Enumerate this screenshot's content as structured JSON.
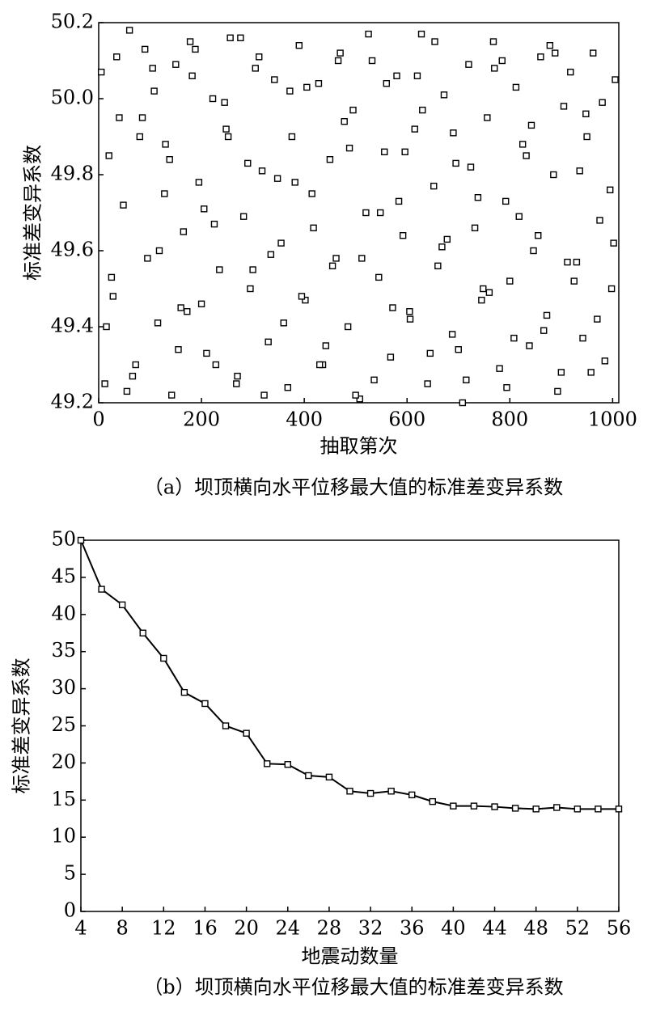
{
  "chart_data": [
    {
      "type": "scatter",
      "x_label": "抽取第次",
      "y_label": "标准差变异系数",
      "caption": "（a）坝顶横向水平位移最大值的标准差变异系数",
      "marker_color": "#000000",
      "xlim": [
        0,
        1012
      ],
      "ylim": [
        49.2,
        50.2
      ],
      "xticks": [
        0,
        200,
        400,
        600,
        800,
        1000
      ],
      "yticks": [
        49.2,
        49.4,
        49.6,
        49.8,
        {
          "value": 50.0,
          "label": "50.0"
        },
        50.2
      ],
      "x": [
        5,
        12,
        20,
        28,
        35,
        48,
        60,
        72,
        85,
        95,
        108,
        115,
        130,
        142,
        150,
        165,
        172,
        188,
        195,
        210,
        222,
        235,
        248,
        256,
        270,
        282,
        295,
        305,
        318,
        330,
        342,
        355,
        368,
        376,
        390,
        402,
        415,
        428,
        436,
        450,
        462,
        470,
        485,
        495,
        508,
        520,
        532,
        545,
        556,
        568,
        580,
        592,
        605,
        615,
        628,
        640,
        652,
        660,
        672,
        688,
        695,
        708,
        720,
        732,
        745,
        756,
        768,
        780,
        792,
        800,
        812,
        825,
        838,
        846,
        860,
        872,
        885,
        893,
        905,
        918,
        930,
        942,
        950,
        962,
        975,
        985,
        998,
        1005,
        15,
        40,
        66,
        90,
        118,
        138,
        160,
        182,
        205,
        228,
        252,
        276,
        300,
        322,
        348,
        372,
        395,
        418,
        442,
        466,
        488,
        512,
        536,
        560,
        584,
        606,
        630,
        654,
        678,
        700,
        724,
        748,
        770,
        794,
        818,
        842,
        866,
        888,
        912,
        936,
        958,
        980,
        1002,
        25,
        55,
        80,
        105,
        128,
        155,
        178,
        200,
        225,
        245,
        268,
        290,
        312,
        335,
        360,
        382,
        405,
        430,
        455,
        478,
        500,
        525,
        548,
        572,
        596,
        620,
        645,
        668,
        690,
        715,
        738,
        760,
        785,
        808,
        832,
        855,
        878,
        900,
        925,
        948,
        970,
        995
      ],
      "y": [
        50.07,
        49.25,
        49.85,
        49.48,
        50.11,
        49.72,
        50.18,
        49.3,
        49.95,
        49.58,
        50.02,
        49.41,
        49.88,
        49.22,
        50.09,
        49.65,
        49.44,
        50.13,
        49.78,
        49.33,
        50.0,
        49.55,
        49.92,
        50.16,
        49.27,
        49.69,
        49.5,
        50.08,
        49.81,
        49.36,
        50.05,
        49.62,
        49.24,
        49.9,
        50.14,
        49.47,
        49.75,
        50.04,
        49.3,
        49.84,
        49.58,
        50.12,
        49.4,
        49.97,
        49.21,
        49.7,
        50.1,
        49.53,
        49.86,
        49.32,
        50.06,
        49.64,
        49.44,
        49.92,
        50.17,
        49.25,
        49.77,
        49.56,
        50.01,
        49.38,
        49.83,
        49.2,
        50.09,
        49.66,
        49.47,
        49.95,
        50.15,
        49.29,
        49.73,
        49.52,
        50.03,
        49.88,
        49.35,
        49.6,
        50.11,
        49.43,
        49.8,
        49.23,
        49.98,
        50.07,
        49.57,
        49.37,
        49.9,
        50.12,
        49.68,
        49.31,
        49.5,
        50.05,
        49.4,
        49.95,
        49.27,
        50.13,
        49.6,
        49.84,
        49.45,
        50.06,
        49.71,
        49.3,
        49.9,
        50.16,
        49.55,
        49.22,
        49.79,
        50.02,
        49.48,
        49.66,
        49.35,
        50.1,
        49.87,
        49.58,
        49.26,
        50.04,
        49.73,
        49.42,
        49.97,
        50.15,
        49.63,
        49.34,
        49.82,
        49.5,
        50.08,
        49.24,
        49.69,
        49.93,
        49.39,
        50.12,
        49.57,
        49.81,
        49.28,
        49.99,
        49.62,
        49.53,
        49.23,
        49.9,
        50.08,
        49.75,
        49.34,
        50.15,
        49.46,
        49.67,
        49.99,
        49.25,
        49.83,
        50.11,
        49.59,
        49.41,
        49.78,
        50.03,
        49.3,
        49.56,
        49.94,
        49.22,
        50.17,
        49.7,
        49.45,
        49.86,
        50.06,
        49.33,
        49.61,
        49.91,
        49.26,
        49.74,
        49.49,
        50.1,
        49.37,
        49.85,
        49.64,
        50.14,
        49.28,
        49.52,
        49.96,
        49.42,
        49.76
      ]
    },
    {
      "type": "line",
      "x_label": "地震动数量",
      "y_label": "标准差变异系数",
      "caption": "（b）坝顶横向水平位移最大值的标准差变异系数",
      "color": "#000000",
      "xlim": [
        4,
        56
      ],
      "ylim": [
        0,
        50
      ],
      "xticks": [
        4,
        8,
        12,
        16,
        20,
        24,
        28,
        32,
        36,
        40,
        44,
        48,
        52,
        56
      ],
      "yticks": [
        0,
        5,
        10,
        15,
        20,
        25,
        30,
        35,
        40,
        45,
        50
      ],
      "x": [
        4,
        6,
        8,
        10,
        12,
        14,
        16,
        18,
        20,
        22,
        24,
        26,
        28,
        30,
        32,
        34,
        36,
        38,
        40,
        42,
        44,
        46,
        48,
        50,
        52,
        54,
        56
      ],
      "values": [
        50,
        43.4,
        41.3,
        37.5,
        34.1,
        29.5,
        28,
        25,
        24,
        19.9,
        19.8,
        18.3,
        18.1,
        16.2,
        15.9,
        16.2,
        15.7,
        14.8,
        14.2,
        14.2,
        14.1,
        13.9,
        13.8,
        14.0,
        13.8,
        13.8,
        13.8
      ]
    }
  ]
}
